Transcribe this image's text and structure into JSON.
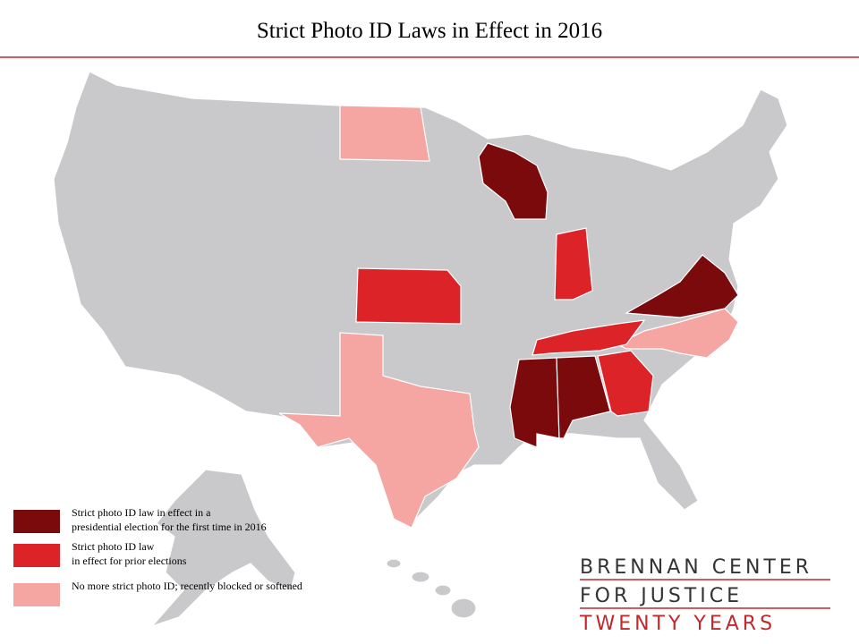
{
  "title": "Strict Photo ID Laws in Effect in 2016",
  "legend": [
    {
      "lines": [
        "Strict photo ID law in effect in a",
        "presidential election for the first time in 2016"
      ],
      "color": "#7a0a0c"
    },
    {
      "lines": [
        "Strict photo ID law",
        "in effect for  prior elections"
      ],
      "color": "#dc2328"
    },
    {
      "lines": [
        "No more strict photo ID; recently blocked or softened"
      ],
      "color": "#f5a6a2"
    }
  ],
  "logo": {
    "lines": [
      "BRENNAN CENTER",
      "FOR JUSTICE",
      "TWENTY YEARS"
    ]
  }
}
